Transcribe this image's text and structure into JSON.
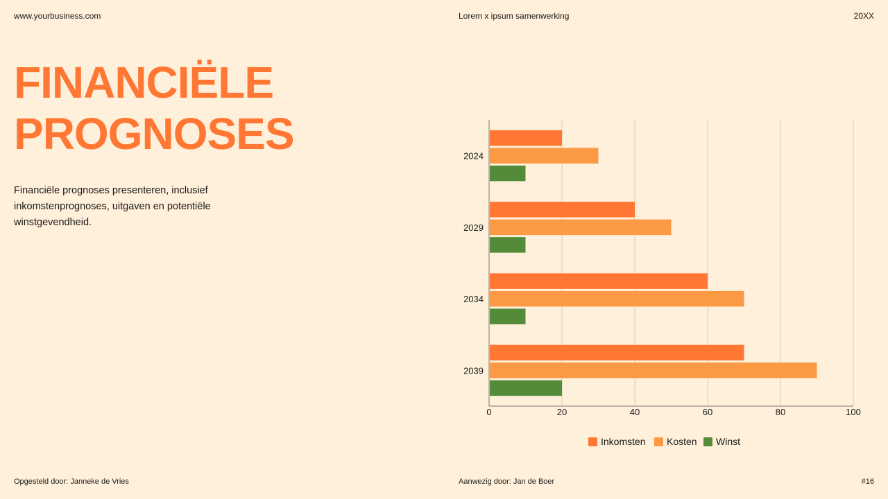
{
  "header": {
    "website": "www.yourbusiness.com",
    "collab": "Lorem x ipsum samenwerking",
    "year": "20XX"
  },
  "title": "FINANCIËLE PROGNOSES",
  "description": "Financiële prognoses presenteren, inclusief inkomstenprognoses, uitgaven en potentiële winstgevendheid.",
  "footer": {
    "prepared": "Opgesteld door: Janneke de Vries",
    "present": "Aanwezig door: Jan de Boer",
    "page": "#16"
  },
  "chart_data": {
    "type": "bar",
    "orientation": "horizontal",
    "categories": [
      "2024",
      "2029",
      "2034",
      "2039"
    ],
    "series": [
      {
        "name": "Inkomsten",
        "values": [
          20,
          40,
          60,
          70
        ],
        "color": "#FF7733"
      },
      {
        "name": "Kosten",
        "values": [
          30,
          50,
          70,
          90
        ],
        "color": "#FB9944"
      },
      {
        "name": "Winst",
        "values": [
          10,
          10,
          10,
          20
        ],
        "color": "#548B38"
      }
    ],
    "xlim": [
      0,
      100
    ],
    "xticks": [
      "0",
      "20",
      "40",
      "60",
      "80",
      "100"
    ],
    "grid": true,
    "legend": "bottom"
  }
}
